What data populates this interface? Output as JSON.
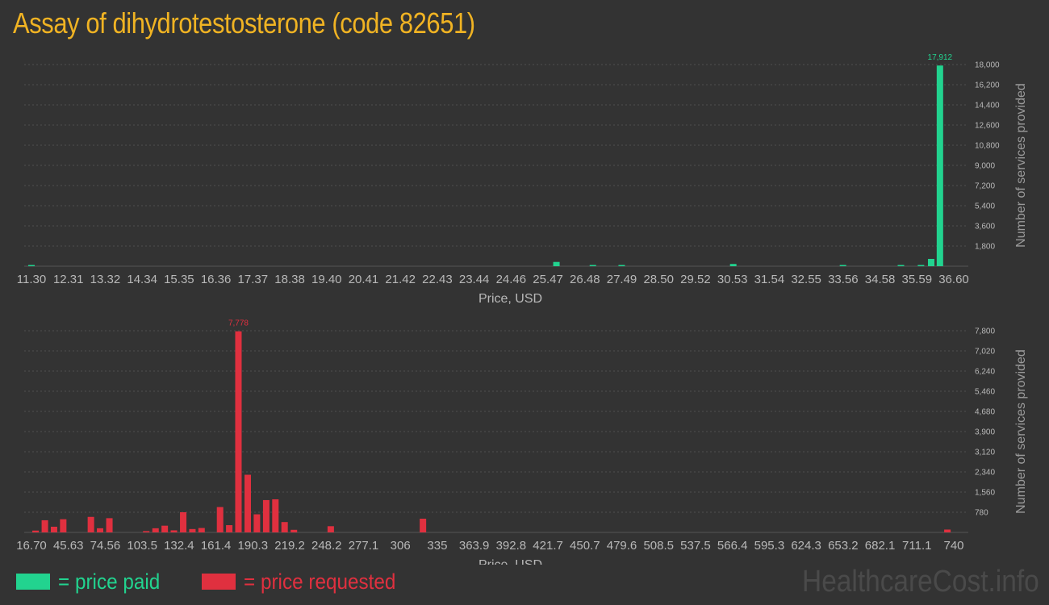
{
  "title": "Assay of dihydrotestosterone (code 82651)",
  "legend": {
    "paid_label": "= price paid",
    "requested_label": "= price requested"
  },
  "watermark": "HealthcareCost.info",
  "colors": {
    "paid": "#22d38f",
    "requested": "#e0303f",
    "title": "#f0b323"
  },
  "chart_data": [
    {
      "type": "bar",
      "series_role": "price paid",
      "xlabel": "Price, USD",
      "ylabel": "Number of services provided",
      "xlim": [
        11.3,
        36.6
      ],
      "ylim": [
        0,
        18000
      ],
      "x_ticks": [
        "11.30",
        "12.31",
        "13.32",
        "14.34",
        "15.35",
        "16.36",
        "17.37",
        "18.38",
        "19.40",
        "20.41",
        "21.42",
        "22.43",
        "23.44",
        "24.46",
        "25.47",
        "26.48",
        "27.49",
        "28.50",
        "29.52",
        "30.53",
        "31.54",
        "32.55",
        "33.56",
        "34.58",
        "35.59",
        "36.60"
      ],
      "y_ticks": [
        "1,800",
        "3,600",
        "5,400",
        "7,200",
        "9,000",
        "10,800",
        "12,600",
        "14,400",
        "16,200",
        "18,000"
      ],
      "y_tick_values": [
        1800,
        3600,
        5400,
        7200,
        9000,
        10800,
        12600,
        14400,
        16200,
        18000
      ],
      "grid": true,
      "peak_label": "17,912",
      "bars": [
        {
          "x": 11.3,
          "y": 60
        },
        {
          "x": 25.7,
          "y": 380
        },
        {
          "x": 26.7,
          "y": 90
        },
        {
          "x": 27.49,
          "y": 90
        },
        {
          "x": 30.55,
          "y": 200
        },
        {
          "x": 33.56,
          "y": 40
        },
        {
          "x": 35.15,
          "y": 80
        },
        {
          "x": 35.7,
          "y": 100
        },
        {
          "x": 35.98,
          "y": 650
        },
        {
          "x": 36.22,
          "y": 17912
        }
      ]
    },
    {
      "type": "bar",
      "series_role": "price requested",
      "xlabel": "Price, USD",
      "ylabel": "Number of services provided",
      "xlim": [
        16.7,
        740
      ],
      "ylim": [
        0,
        7800
      ],
      "x_ticks": [
        "16.70",
        "45.63",
        "74.56",
        "103.5",
        "132.4",
        "161.4",
        "190.3",
        "219.2",
        "248.2",
        "277.1",
        "306",
        "335",
        "363.9",
        "392.8",
        "421.7",
        "450.7",
        "479.6",
        "508.5",
        "537.5",
        "566.4",
        "595.3",
        "624.3",
        "653.2",
        "682.1",
        "711.1",
        "740"
      ],
      "y_ticks": [
        "780",
        "1,560",
        "2,340",
        "3,120",
        "3,900",
        "4,680",
        "5,460",
        "6,240",
        "7,020",
        "7,800"
      ],
      "y_tick_values": [
        780,
        1560,
        2340,
        3120,
        3900,
        4680,
        5460,
        6240,
        7020,
        7800
      ],
      "grid": true,
      "peak_label": "7,778",
      "bars": [
        {
          "x": 19.9,
          "y": 70
        },
        {
          "x": 27.2,
          "y": 470
        },
        {
          "x": 34.4,
          "y": 220
        },
        {
          "x": 41.6,
          "y": 510
        },
        {
          "x": 63.3,
          "y": 600
        },
        {
          "x": 70.5,
          "y": 160
        },
        {
          "x": 77.8,
          "y": 550
        },
        {
          "x": 106.7,
          "y": 50
        },
        {
          "x": 114.0,
          "y": 160
        },
        {
          "x": 121.2,
          "y": 260
        },
        {
          "x": 128.4,
          "y": 80
        },
        {
          "x": 135.7,
          "y": 780
        },
        {
          "x": 142.9,
          "y": 130
        },
        {
          "x": 150.1,
          "y": 170
        },
        {
          "x": 164.6,
          "y": 980
        },
        {
          "x": 171.8,
          "y": 280
        },
        {
          "x": 179.0,
          "y": 7778
        },
        {
          "x": 186.3,
          "y": 2230
        },
        {
          "x": 193.5,
          "y": 700
        },
        {
          "x": 200.8,
          "y": 1250
        },
        {
          "x": 208.0,
          "y": 1280
        },
        {
          "x": 215.2,
          "y": 400
        },
        {
          "x": 222.5,
          "y": 100
        },
        {
          "x": 251.4,
          "y": 240
        },
        {
          "x": 323.7,
          "y": 530
        },
        {
          "x": 735.0,
          "y": 110
        }
      ]
    }
  ]
}
